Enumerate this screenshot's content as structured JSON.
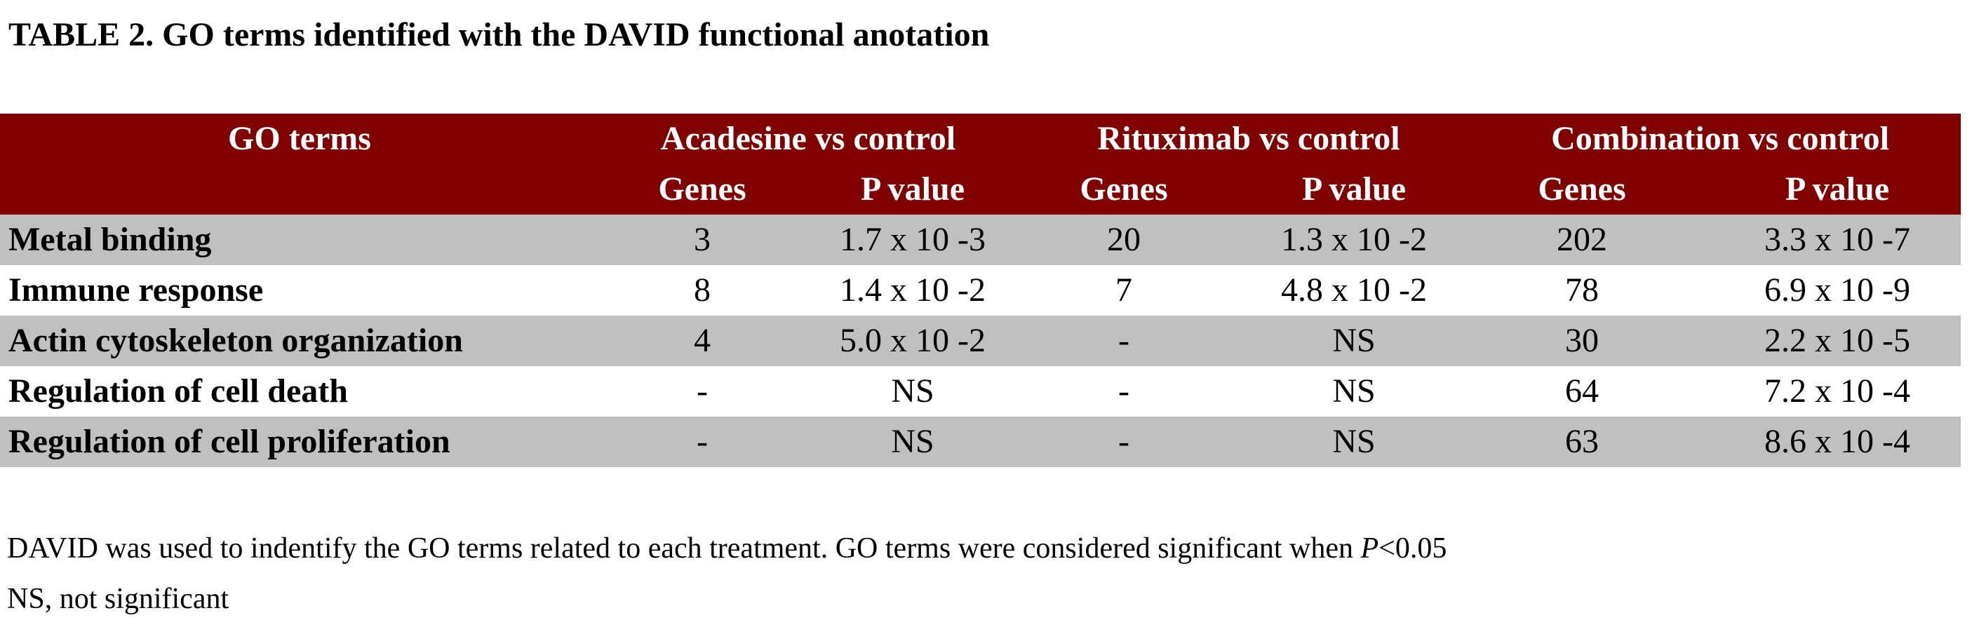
{
  "title": "TABLE 2. GO terms identified with the DAVID functional anotation",
  "table": {
    "header": {
      "first": "GO terms",
      "groups": [
        "Acadesine vs control",
        "Rituximab vs control",
        "Combination vs control"
      ],
      "subheaders": [
        "Genes",
        "P value",
        "Genes",
        "P value",
        "Genes",
        "P value"
      ]
    },
    "rows": [
      [
        "Metal binding",
        "3",
        "1.7 x 10 -3",
        "20",
        "1.3 x 10 -2",
        "202",
        "3.3 x 10 -7"
      ],
      [
        "Immune response",
        "8",
        "1.4 x 10 -2",
        "7",
        "4.8 x 10 -2",
        "78",
        "6.9 x 10 -9"
      ],
      [
        "Actin cytoskeleton organization",
        "4",
        "5.0 x 10 -2",
        "-",
        "NS",
        "30",
        "2.2 x 10 -5"
      ],
      [
        "Regulation of cell death",
        "-",
        "NS",
        "-",
        "NS",
        "64",
        "7.2 x 10 -4"
      ],
      [
        "Regulation of cell proliferation",
        "-",
        "NS",
        "-",
        "NS",
        "63",
        "8.6 x 10 -4"
      ]
    ]
  },
  "footnotes": {
    "note": {
      "text": "DAVID was used to indentify the GO terms related to each treatment. GO terms were considered significant when ",
      "italic": "P",
      "after": "<0.05"
    },
    "abbreviation": "NS, not significant"
  }
}
